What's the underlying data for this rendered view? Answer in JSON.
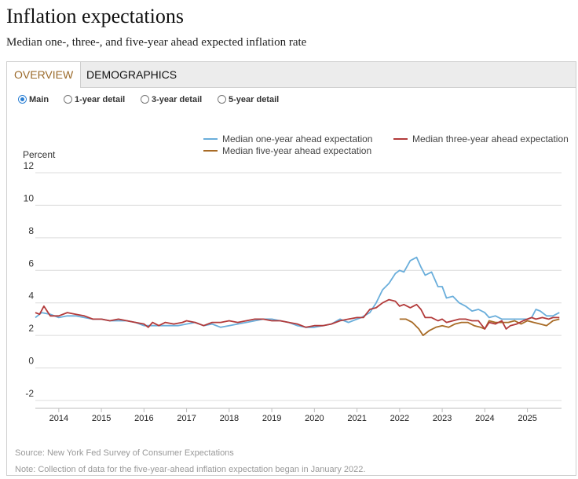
{
  "header": {
    "title": "Inflation expectations",
    "subtitle": "Median one-, three-, and five-year ahead expected inflation rate"
  },
  "tabs": [
    {
      "label": "OVERVIEW",
      "active": true
    },
    {
      "label": "DEMOGRAPHICS",
      "active": false
    }
  ],
  "views": [
    {
      "label": "Main",
      "selected": true
    },
    {
      "label": "1-year detail",
      "selected": false
    },
    {
      "label": "3-year detail",
      "selected": false
    },
    {
      "label": "5-year detail",
      "selected": false
    }
  ],
  "colors": {
    "one_year": "#6aaedb",
    "three_year": "#b23a3a",
    "five_year": "#a86b26",
    "tab_active": "#9b6a2a",
    "radio": "#2a7fd4"
  },
  "chart_data": {
    "type": "line",
    "ylabel": "Percent",
    "ylim": [
      -2,
      12
    ],
    "yticks": [
      -2,
      0,
      2,
      4,
      6,
      8,
      10,
      12
    ],
    "xlim": [
      2013.45,
      2025.8
    ],
    "xticks": [
      2014,
      2015,
      2016,
      2017,
      2018,
      2019,
      2020,
      2021,
      2022,
      2023,
      2024,
      2025
    ],
    "series": [
      {
        "name": "Median one-year ahead expectation",
        "color": "#6aaedb",
        "points": [
          [
            2013.45,
            3.1
          ],
          [
            2013.6,
            3.4
          ],
          [
            2013.8,
            3.3
          ],
          [
            2014.0,
            3.1
          ],
          [
            2014.2,
            3.2
          ],
          [
            2014.4,
            3.2
          ],
          [
            2014.6,
            3.1
          ],
          [
            2014.8,
            3.0
          ],
          [
            2015.0,
            3.0
          ],
          [
            2015.2,
            2.9
          ],
          [
            2015.4,
            2.9
          ],
          [
            2015.6,
            2.9
          ],
          [
            2015.8,
            2.8
          ],
          [
            2016.0,
            2.6
          ],
          [
            2016.2,
            2.6
          ],
          [
            2016.4,
            2.6
          ],
          [
            2016.6,
            2.6
          ],
          [
            2016.8,
            2.6
          ],
          [
            2017.0,
            2.7
          ],
          [
            2017.2,
            2.8
          ],
          [
            2017.4,
            2.6
          ],
          [
            2017.6,
            2.7
          ],
          [
            2017.8,
            2.5
          ],
          [
            2018.0,
            2.6
          ],
          [
            2018.2,
            2.7
          ],
          [
            2018.4,
            2.8
          ],
          [
            2018.6,
            2.9
          ],
          [
            2018.8,
            3.0
          ],
          [
            2019.0,
            3.0
          ],
          [
            2019.2,
            2.9
          ],
          [
            2019.4,
            2.8
          ],
          [
            2019.6,
            2.6
          ],
          [
            2019.8,
            2.5
          ],
          [
            2020.0,
            2.5
          ],
          [
            2020.2,
            2.6
          ],
          [
            2020.4,
            2.7
          ],
          [
            2020.6,
            3.0
          ],
          [
            2020.8,
            2.8
          ],
          [
            2021.0,
            3.0
          ],
          [
            2021.1,
            3.1
          ],
          [
            2021.3,
            3.4
          ],
          [
            2021.45,
            4.0
          ],
          [
            2021.6,
            4.8
          ],
          [
            2021.75,
            5.2
          ],
          [
            2021.9,
            5.8
          ],
          [
            2022.0,
            6.0
          ],
          [
            2022.1,
            5.9
          ],
          [
            2022.25,
            6.6
          ],
          [
            2022.4,
            6.8
          ],
          [
            2022.5,
            6.2
          ],
          [
            2022.6,
            5.7
          ],
          [
            2022.75,
            5.9
          ],
          [
            2022.9,
            5.0
          ],
          [
            2023.0,
            5.0
          ],
          [
            2023.1,
            4.3
          ],
          [
            2023.25,
            4.4
          ],
          [
            2023.4,
            4.0
          ],
          [
            2023.55,
            3.8
          ],
          [
            2023.7,
            3.5
          ],
          [
            2023.85,
            3.6
          ],
          [
            2024.0,
            3.4
          ],
          [
            2024.1,
            3.1
          ],
          [
            2024.25,
            3.2
          ],
          [
            2024.4,
            3.0
          ],
          [
            2024.55,
            3.0
          ],
          [
            2024.7,
            3.0
          ],
          [
            2024.85,
            3.0
          ],
          [
            2025.0,
            3.0
          ],
          [
            2025.1,
            3.1
          ],
          [
            2025.2,
            3.6
          ],
          [
            2025.3,
            3.5
          ],
          [
            2025.45,
            3.2
          ],
          [
            2025.6,
            3.2
          ],
          [
            2025.75,
            3.4
          ]
        ]
      },
      {
        "name": "Median three-year ahead expectation",
        "color": "#b23a3a",
        "points": [
          [
            2013.45,
            3.4
          ],
          [
            2013.55,
            3.3
          ],
          [
            2013.65,
            3.8
          ],
          [
            2013.8,
            3.2
          ],
          [
            2014.0,
            3.2
          ],
          [
            2014.2,
            3.4
          ],
          [
            2014.4,
            3.3
          ],
          [
            2014.6,
            3.2
          ],
          [
            2014.8,
            3.0
          ],
          [
            2015.0,
            3.0
          ],
          [
            2015.2,
            2.9
          ],
          [
            2015.4,
            3.0
          ],
          [
            2015.6,
            2.9
          ],
          [
            2015.8,
            2.8
          ],
          [
            2016.0,
            2.7
          ],
          [
            2016.1,
            2.5
          ],
          [
            2016.2,
            2.8
          ],
          [
            2016.35,
            2.6
          ],
          [
            2016.5,
            2.8
          ],
          [
            2016.7,
            2.7
          ],
          [
            2016.9,
            2.8
          ],
          [
            2017.0,
            2.9
          ],
          [
            2017.2,
            2.8
          ],
          [
            2017.4,
            2.6
          ],
          [
            2017.6,
            2.8
          ],
          [
            2017.8,
            2.8
          ],
          [
            2018.0,
            2.9
          ],
          [
            2018.2,
            2.8
          ],
          [
            2018.4,
            2.9
          ],
          [
            2018.6,
            3.0
          ],
          [
            2018.8,
            3.0
          ],
          [
            2019.0,
            2.9
          ],
          [
            2019.2,
            2.9
          ],
          [
            2019.4,
            2.8
          ],
          [
            2019.6,
            2.7
          ],
          [
            2019.8,
            2.5
          ],
          [
            2020.0,
            2.6
          ],
          [
            2020.2,
            2.6
          ],
          [
            2020.4,
            2.7
          ],
          [
            2020.6,
            2.9
          ],
          [
            2020.8,
            3.0
          ],
          [
            2021.0,
            3.1
          ],
          [
            2021.15,
            3.1
          ],
          [
            2021.3,
            3.6
          ],
          [
            2021.45,
            3.7
          ],
          [
            2021.6,
            4.0
          ],
          [
            2021.75,
            4.2
          ],
          [
            2021.9,
            4.1
          ],
          [
            2022.0,
            3.8
          ],
          [
            2022.1,
            3.9
          ],
          [
            2022.25,
            3.7
          ],
          [
            2022.4,
            3.9
          ],
          [
            2022.5,
            3.6
          ],
          [
            2022.6,
            3.1
          ],
          [
            2022.75,
            3.1
          ],
          [
            2022.9,
            2.9
          ],
          [
            2023.0,
            3.0
          ],
          [
            2023.1,
            2.8
          ],
          [
            2023.25,
            2.9
          ],
          [
            2023.4,
            3.0
          ],
          [
            2023.55,
            3.0
          ],
          [
            2023.7,
            2.9
          ],
          [
            2023.85,
            2.9
          ],
          [
            2024.0,
            2.4
          ],
          [
            2024.1,
            2.8
          ],
          [
            2024.25,
            2.7
          ],
          [
            2024.4,
            2.9
          ],
          [
            2024.5,
            2.4
          ],
          [
            2024.6,
            2.6
          ],
          [
            2024.75,
            2.7
          ],
          [
            2024.9,
            2.9
          ],
          [
            2025.0,
            3.0
          ],
          [
            2025.1,
            3.1
          ],
          [
            2025.2,
            3.0
          ],
          [
            2025.35,
            3.1
          ],
          [
            2025.5,
            3.0
          ],
          [
            2025.6,
            3.1
          ],
          [
            2025.75,
            3.1
          ]
        ]
      },
      {
        "name": "Median five-year ahead expectation",
        "color": "#a86b26",
        "points": [
          [
            2022.0,
            3.0
          ],
          [
            2022.15,
            3.0
          ],
          [
            2022.3,
            2.8
          ],
          [
            2022.45,
            2.4
          ],
          [
            2022.55,
            2.0
          ],
          [
            2022.7,
            2.3
          ],
          [
            2022.85,
            2.5
          ],
          [
            2023.0,
            2.6
          ],
          [
            2023.15,
            2.5
          ],
          [
            2023.3,
            2.7
          ],
          [
            2023.45,
            2.8
          ],
          [
            2023.6,
            2.8
          ],
          [
            2023.75,
            2.6
          ],
          [
            2023.9,
            2.5
          ],
          [
            2024.0,
            2.4
          ],
          [
            2024.1,
            2.9
          ],
          [
            2024.25,
            2.8
          ],
          [
            2024.4,
            2.8
          ],
          [
            2024.55,
            2.8
          ],
          [
            2024.7,
            2.9
          ],
          [
            2024.85,
            2.7
          ],
          [
            2025.0,
            2.9
          ],
          [
            2025.15,
            2.8
          ],
          [
            2025.3,
            2.7
          ],
          [
            2025.45,
            2.6
          ],
          [
            2025.6,
            2.9
          ],
          [
            2025.75,
            3.0
          ]
        ]
      }
    ]
  },
  "footer": {
    "source": "Source: New York Fed Survey of Consumer Expectations",
    "note": "Note: Collection of data for the five-year-ahead inflation expectation began in January 2022."
  }
}
